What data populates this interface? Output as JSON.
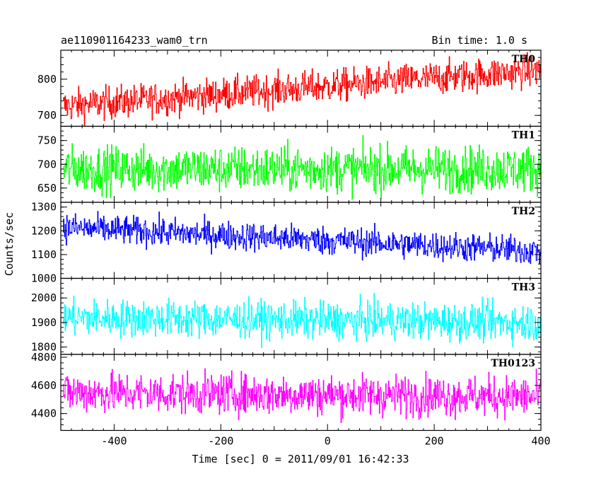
{
  "chart_data": {
    "type": "line",
    "title": "ae110901164233_wam0_trn",
    "bin_time": "Bin time: 1.0 s",
    "xlabel": "Time [sec] 0 = 2011/09/01 16:42:33",
    "ylabel": "Counts/sec",
    "xlim": [
      -500,
      400
    ],
    "x_ticks": [
      -400,
      -200,
      0,
      200,
      400
    ],
    "panels": [
      {
        "name": "TH0",
        "color": "#ff0000",
        "ylim": [
          670,
          880
        ],
        "y_ticks": [
          700,
          800
        ],
        "trend": {
          "t0": -500,
          "v0": 725,
          "t1": 400,
          "v1": 825
        },
        "noise": 30
      },
      {
        "name": "TH1",
        "color": "#00ff00",
        "ylim": [
          620,
          780
        ],
        "y_ticks": [
          650,
          700,
          750
        ],
        "trend": {
          "t0": -500,
          "v0": 690,
          "t1": 400,
          "v1": 690
        },
        "noise": 32
      },
      {
        "name": "TH2",
        "color": "#0000ff",
        "ylim": [
          1000,
          1320
        ],
        "y_ticks": [
          1000,
          1100,
          1200,
          1300
        ],
        "trend": {
          "t0": -500,
          "v0": 1215,
          "t1": 400,
          "v1": 1115
        },
        "noise": 40
      },
      {
        "name": "TH3",
        "color": "#00ffff",
        "ylim": [
          1770,
          2080
        ],
        "y_ticks": [
          1800,
          1900,
          2000
        ],
        "trend": {
          "t0": -500,
          "v0": 1920,
          "t1": 400,
          "v1": 1900
        },
        "noise": 50
      },
      {
        "name": "TH0123",
        "color": "#ff00ff",
        "ylim": [
          4280,
          4820
        ],
        "y_ticks": [
          4400,
          4600,
          4800
        ],
        "trend": {
          "t0": -500,
          "v0": 4550,
          "t1": 400,
          "v1": 4520
        },
        "noise": 95
      }
    ]
  }
}
